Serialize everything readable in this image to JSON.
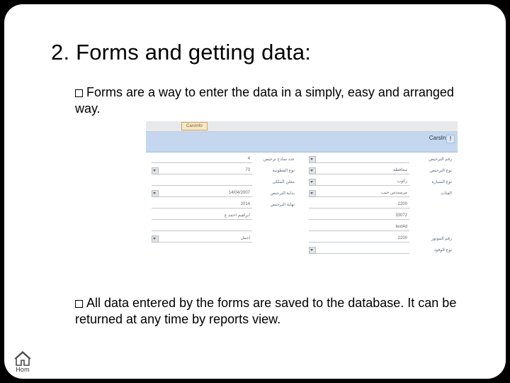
{
  "title": "2.  Forms and getting data:",
  "bullets": {
    "b1": "Forms are a way to enter the data in a simply, easy and arranged way.",
    "b2": "All data entered by the forms are saved to the database. It can be returned at any time by reports view."
  },
  "home_label": "Hom",
  "form": {
    "tab1": "CarsInfo",
    "tab2": "",
    "header_title": "CarsInfo",
    "left_col": [
      {
        "label": "عدد نماذج ترخيص",
        "value": "4"
      },
      {
        "label": "نوع القطونية",
        "value": "73",
        "dd": true
      },
      {
        "label": "معلن الملكى",
        "value": ""
      },
      {
        "label": "بداية الترخيص",
        "value": "14/04/2007",
        "dd": true
      },
      {
        "label": "نهاية الترخيص",
        "value": "2014"
      },
      {
        "label": "",
        "value": "ابراهيم احمد ع"
      },
      {
        "label": "",
        "value": ""
      },
      {
        "label": "",
        "value": "اجمل",
        "dd": true
      }
    ],
    "right_col": [
      {
        "label": "رقم الترخيص",
        "value": "",
        "dd": true
      },
      {
        "label": "نوع الترخيص",
        "value": "محافظة",
        "dd": true
      },
      {
        "label": "نوع السيارة",
        "value": "ركوب",
        "dd": true
      },
      {
        "label": "الفئات",
        "value": "مرسيدس جيب",
        "dd": true
      },
      {
        "label": "",
        "value": "2200"
      },
      {
        "label": "",
        "value": "33072"
      },
      {
        "label": "",
        "value": "text4d"
      },
      {
        "label": "رقم الموتور",
        "value": "2200"
      },
      {
        "label": "نوع الوقود",
        "value": "",
        "dd": true
      }
    ]
  },
  "colors": {
    "slide_bg": "#ffffff",
    "page_bg": "#000000",
    "form_header": "#c5d7ef",
    "form_topbar": "#e7e9ec",
    "tab_bg": "#f8e7c8"
  }
}
